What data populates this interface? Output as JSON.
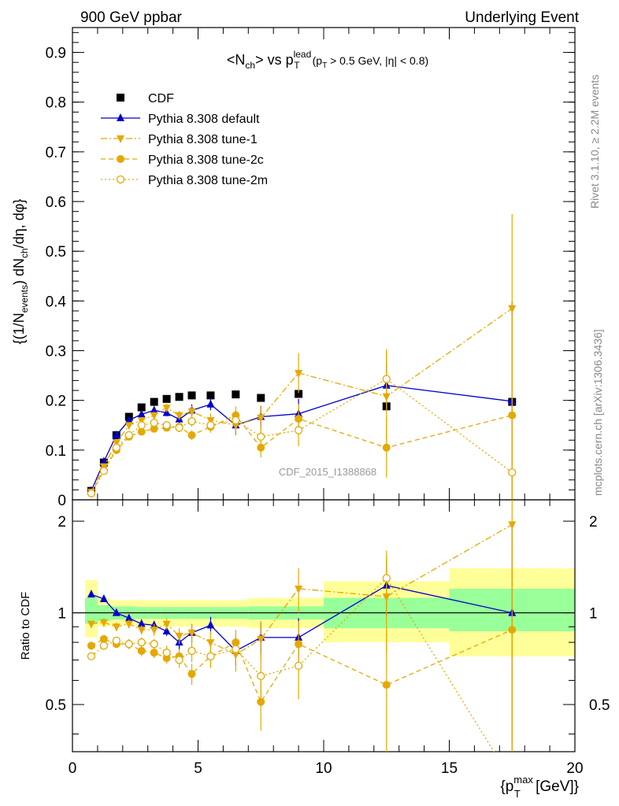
{
  "header": {
    "left": "900 GeV ppbar",
    "right": "Underlying Event"
  },
  "side_labels": {
    "rivet": "Rivet 3.1.10, ≥ 2.2M events",
    "mcplots": "mcplots.cern.ch [arXiv:1306.3436]"
  },
  "colors": {
    "cdf": "#000000",
    "default": "#0000cc",
    "tune": "#e6a800",
    "band_inner": "#99ff99",
    "band_outer": "#ffff99"
  },
  "chart_data": [
    {
      "type": "scatter",
      "panel": "main",
      "title": "<N_ch> vs p_T^lead (p_T > 0.5 GeV, |η| < 0.8)",
      "ylabel": "{(1/N_events) dN_ch/dη, dφ}",
      "watermark": "CDF_2015_I1388868",
      "xlim": [
        0,
        20
      ],
      "ylim": [
        0,
        0.95
      ],
      "yticks": [
        "0",
        "0.1",
        "0.2",
        "0.3",
        "0.4",
        "0.5",
        "0.6",
        "0.7",
        "0.8",
        "0.9"
      ],
      "legend": [
        "CDF",
        "Pythia 8.308 default",
        "Pythia 8.308 tune-1",
        "Pythia 8.308 tune-2c",
        "Pythia 8.308 tune-2m"
      ],
      "x": [
        0.75,
        1.25,
        1.75,
        2.25,
        2.75,
        3.25,
        3.75,
        4.25,
        4.75,
        5.5,
        6.5,
        7.5,
        9.0,
        12.5,
        17.5
      ],
      "series": [
        {
          "name": "CDF",
          "marker": "square",
          "values": [
            0.018,
            0.075,
            0.13,
            0.167,
            0.186,
            0.197,
            0.203,
            0.207,
            0.21,
            0.21,
            0.212,
            0.205,
            0.213,
            0.188,
            0.197
          ]
        },
        {
          "name": "Pythia 8.308 default",
          "marker": "triangle-up",
          "line": "solid",
          "values": [
            0.018,
            0.077,
            0.13,
            0.16,
            0.172,
            0.18,
            0.175,
            0.162,
            0.18,
            0.192,
            0.15,
            0.167,
            0.173,
            0.23,
            0.198
          ],
          "errors": [
            0.002,
            0.004,
            0.004,
            0.004,
            0.006,
            0.006,
            0.007,
            0.009,
            0.012,
            0.012,
            0.02,
            0.022,
            0.03,
            0.045,
            0.2
          ]
        },
        {
          "name": "Pythia 8.308 tune-1",
          "marker": "triangle-down",
          "line": "dashdot",
          "values": [
            0.016,
            0.067,
            0.115,
            0.15,
            0.16,
            0.17,
            0.185,
            0.17,
            0.178,
            0.16,
            0.15,
            0.165,
            0.255,
            0.208,
            0.385
          ],
          "errors": [
            0.002,
            0.004,
            0.004,
            0.005,
            0.006,
            0.007,
            0.008,
            0.009,
            0.011,
            0.014,
            0.02,
            0.025,
            0.04,
            0.09,
            0.19
          ]
        },
        {
          "name": "Pythia 8.308 tune-2c",
          "marker": "circle",
          "line": "dashed",
          "values": [
            0.013,
            0.06,
            0.1,
            0.127,
            0.137,
            0.143,
            0.145,
            0.147,
            0.13,
            0.147,
            0.17,
            0.105,
            0.163,
            0.105,
            0.17
          ],
          "errors": [
            0.002,
            0.003,
            0.004,
            0.005,
            0.005,
            0.006,
            0.006,
            0.008,
            0.01,
            0.012,
            0.018,
            0.02,
            0.03,
            0.06,
            0.2
          ]
        },
        {
          "name": "Pythia 8.308 tune-2m",
          "marker": "circle-open",
          "line": "dotted",
          "values": [
            0.013,
            0.058,
            0.105,
            0.13,
            0.15,
            0.155,
            0.15,
            0.145,
            0.158,
            0.15,
            0.16,
            0.127,
            0.14,
            0.243,
            0.055
          ],
          "errors": [
            0.002,
            0.003,
            0.004,
            0.005,
            0.006,
            0.006,
            0.008,
            0.009,
            0.011,
            0.013,
            0.02,
            0.022,
            0.032,
            0.06,
            0.14
          ]
        }
      ]
    },
    {
      "type": "scatter",
      "panel": "ratio",
      "ylabel": "Ratio to CDF",
      "xlabel": "{p_T^max [GeV]}",
      "xlim": [
        0,
        20
      ],
      "ylim": [
        0.35,
        2.35
      ],
      "xticks": [
        "0",
        "5",
        "10",
        "15",
        "20"
      ],
      "yticks": [
        "0.5",
        "1",
        "2"
      ],
      "x": [
        0.75,
        1.25,
        1.75,
        2.25,
        2.75,
        3.25,
        3.75,
        4.25,
        4.75,
        5.5,
        6.5,
        7.5,
        9.0,
        12.5,
        17.5
      ],
      "bands": {
        "bins": [
          [
            0.5,
            1.0
          ],
          [
            1.0,
            1.5
          ],
          [
            1.5,
            2.0
          ],
          [
            2.0,
            2.5
          ],
          [
            2.5,
            3.0
          ],
          [
            3.0,
            3.5
          ],
          [
            3.5,
            4.0
          ],
          [
            4.0,
            4.5
          ],
          [
            4.5,
            5.0
          ],
          [
            5.0,
            6.0
          ],
          [
            6.0,
            7.0
          ],
          [
            7.0,
            8.0
          ],
          [
            8.0,
            10.0
          ],
          [
            10.0,
            15.0
          ],
          [
            15.0,
            20.0
          ]
        ],
        "inner": [
          [
            0.92,
            1.12
          ],
          [
            0.94,
            1.06
          ],
          [
            0.95,
            1.05
          ],
          [
            0.95,
            1.05
          ],
          [
            0.955,
            1.045
          ],
          [
            0.955,
            1.045
          ],
          [
            0.955,
            1.045
          ],
          [
            0.955,
            1.045
          ],
          [
            0.955,
            1.045
          ],
          [
            0.955,
            1.045
          ],
          [
            0.955,
            1.045
          ],
          [
            0.95,
            1.05
          ],
          [
            0.95,
            1.05
          ],
          [
            0.89,
            1.12
          ],
          [
            0.87,
            1.2
          ]
        ],
        "outer": [
          [
            0.83,
            1.28
          ],
          [
            0.9,
            1.12
          ],
          [
            0.91,
            1.1
          ],
          [
            0.91,
            1.1
          ],
          [
            0.9,
            1.1
          ],
          [
            0.9,
            1.1
          ],
          [
            0.9,
            1.1
          ],
          [
            0.9,
            1.1
          ],
          [
            0.9,
            1.1
          ],
          [
            0.9,
            1.1
          ],
          [
            0.9,
            1.1
          ],
          [
            0.89,
            1.12
          ],
          [
            0.89,
            1.12
          ],
          [
            0.8,
            1.27
          ],
          [
            0.72,
            1.4
          ]
        ]
      },
      "series": [
        {
          "name": "Pythia 8.308 default",
          "marker": "triangle-up",
          "line": "solid",
          "values": [
            1.15,
            1.11,
            1.0,
            0.96,
            0.92,
            0.91,
            0.87,
            0.8,
            0.86,
            0.91,
            0.75,
            0.83,
            0.83,
            1.23,
            1.0
          ],
          "errors": [
            0.02,
            0.02,
            0.02,
            0.02,
            0.03,
            0.03,
            0.03,
            0.04,
            0.06,
            0.06,
            0.08,
            0.1,
            0.13,
            0.25,
            0.95
          ]
        },
        {
          "name": "Pythia 8.308 tune-1",
          "marker": "triangle-down",
          "line": "dashdot",
          "values": [
            0.92,
            0.93,
            0.9,
            0.92,
            0.88,
            0.88,
            0.92,
            0.84,
            0.86,
            0.8,
            0.73,
            0.82,
            1.2,
            1.13,
            1.95
          ],
          "errors": [
            0.02,
            0.03,
            0.03,
            0.03,
            0.03,
            0.04,
            0.04,
            0.05,
            0.06,
            0.07,
            0.09,
            0.12,
            0.2,
            0.4,
            0.9
          ]
        },
        {
          "name": "Pythia 8.308 tune-2c",
          "marker": "circle",
          "line": "dashed",
          "values": [
            0.78,
            0.82,
            0.79,
            0.79,
            0.75,
            0.74,
            0.71,
            0.72,
            0.63,
            0.72,
            0.8,
            0.51,
            0.79,
            0.58,
            0.88
          ],
          "errors": [
            0.02,
            0.02,
            0.02,
            0.03,
            0.03,
            0.03,
            0.03,
            0.04,
            0.05,
            0.06,
            0.08,
            0.1,
            0.15,
            0.3,
            1.0
          ]
        },
        {
          "name": "Pythia 8.308 tune-2m",
          "marker": "circle-open",
          "line": "dotted",
          "values": [
            0.72,
            0.78,
            0.81,
            0.79,
            0.8,
            0.79,
            0.74,
            0.7,
            0.75,
            0.72,
            0.76,
            0.62,
            0.67,
            1.3,
            0.28
          ],
          "errors": [
            0.02,
            0.02,
            0.02,
            0.03,
            0.03,
            0.03,
            0.04,
            0.04,
            0.06,
            0.06,
            0.09,
            0.11,
            0.15,
            0.3,
            0.7
          ]
        }
      ]
    }
  ]
}
